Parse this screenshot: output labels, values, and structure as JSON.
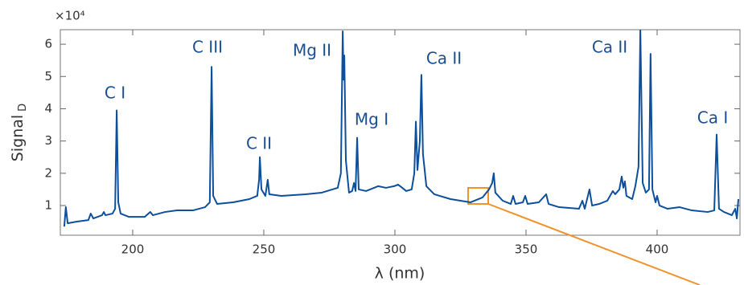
{
  "chart_data": {
    "type": "line",
    "xlabel": "λ (nm)",
    "ylabel": "Signal",
    "ylabel_subscript": "D",
    "y_multiplier": "×10⁴",
    "color": "#0d4f9a",
    "xlim": [
      172.4,
      431.6
    ],
    "xticks": [
      200,
      250,
      300,
      350,
      400
    ],
    "ylim": [
      0.08,
      6.45
    ],
    "yticks": [
      1,
      2,
      3,
      4,
      5,
      6
    ],
    "annotations": [
      "C I",
      "C III",
      "C II",
      "Mg II",
      "Mg I",
      "Ca II",
      "Ca II",
      "Ca I"
    ],
    "x": [
      173.9,
      174.5,
      175.2,
      178.5,
      183.1,
      184.0,
      185.0,
      188.3,
      189.0,
      189.6,
      192.3,
      193.3,
      193.9,
      194.5,
      195.4,
      198.5,
      204.6,
      206.7,
      207.7,
      212.3,
      216.9,
      223.0,
      227.6,
      229.4,
      230.1,
      230.7,
      232.2,
      238.3,
      244.5,
      247.5,
      248.2,
      248.5,
      249.1,
      250.6,
      251.5,
      252.1,
      256.7,
      266.0,
      272.1,
      278.2,
      279.4,
      280.1,
      280.4,
      280.7,
      281.3,
      282.5,
      283.7,
      284.4,
      285.0,
      285.6,
      286.2,
      289.0,
      293.6,
      296.6,
      299.7,
      301.2,
      302.8,
      304.3,
      306.4,
      307.4,
      308.0,
      308.6,
      309.5,
      310.1,
      310.7,
      312.0,
      315.0,
      321.2,
      328.8,
      333.4,
      335.9,
      337.1,
      337.7,
      338.3,
      341.1,
      344.2,
      345.1,
      346.0,
      348.8,
      349.7,
      350.6,
      354.9,
      357.7,
      358.6,
      362.6,
      370.2,
      371.5,
      372.4,
      374.2,
      375.2,
      377.9,
      381.0,
      383.1,
      384.0,
      385.6,
      386.5,
      387.1,
      387.7,
      388.3,
      390.5,
      391.7,
      392.9,
      393.6,
      394.5,
      395.7,
      396.9,
      397.5,
      398.2,
      399.4,
      400.0,
      400.9,
      404.0,
      408.6,
      413.2,
      419.3,
      421.8,
      422.7,
      423.6,
      425.5,
      428.5,
      429.8,
      430.4,
      431.0
    ],
    "values": [
      0.35,
      0.95,
      0.45,
      0.5,
      0.55,
      0.75,
      0.6,
      0.7,
      0.8,
      0.7,
      0.75,
      0.9,
      3.95,
      1.1,
      0.75,
      0.65,
      0.65,
      0.8,
      0.7,
      0.8,
      0.85,
      0.85,
      0.95,
      1.1,
      5.3,
      1.3,
      1.05,
      1.1,
      1.2,
      1.3,
      1.8,
      2.5,
      1.5,
      1.3,
      1.8,
      1.35,
      1.3,
      1.35,
      1.4,
      1.55,
      2.0,
      6.4,
      4.9,
      5.65,
      2.4,
      1.4,
      1.45,
      1.7,
      1.45,
      3.1,
      1.5,
      1.45,
      1.6,
      1.55,
      1.6,
      1.65,
      1.55,
      1.45,
      1.5,
      2.0,
      3.6,
      2.1,
      3.0,
      5.05,
      2.6,
      1.6,
      1.35,
      1.2,
      1.1,
      1.25,
      1.5,
      1.7,
      2.0,
      1.4,
      1.15,
      1.05,
      1.3,
      1.05,
      1.1,
      1.3,
      1.05,
      1.1,
      1.35,
      1.05,
      0.95,
      0.9,
      1.15,
      0.9,
      1.5,
      1.0,
      1.05,
      1.15,
      1.45,
      1.35,
      1.5,
      1.9,
      1.55,
      1.75,
      1.3,
      1.2,
      1.6,
      2.2,
      6.45,
      1.7,
      1.4,
      1.5,
      5.7,
      1.5,
      1.1,
      1.3,
      1.0,
      0.9,
      0.95,
      0.85,
      0.8,
      0.85,
      3.2,
      0.9,
      0.8,
      0.7,
      0.9,
      0.6,
      1.2
    ]
  }
}
